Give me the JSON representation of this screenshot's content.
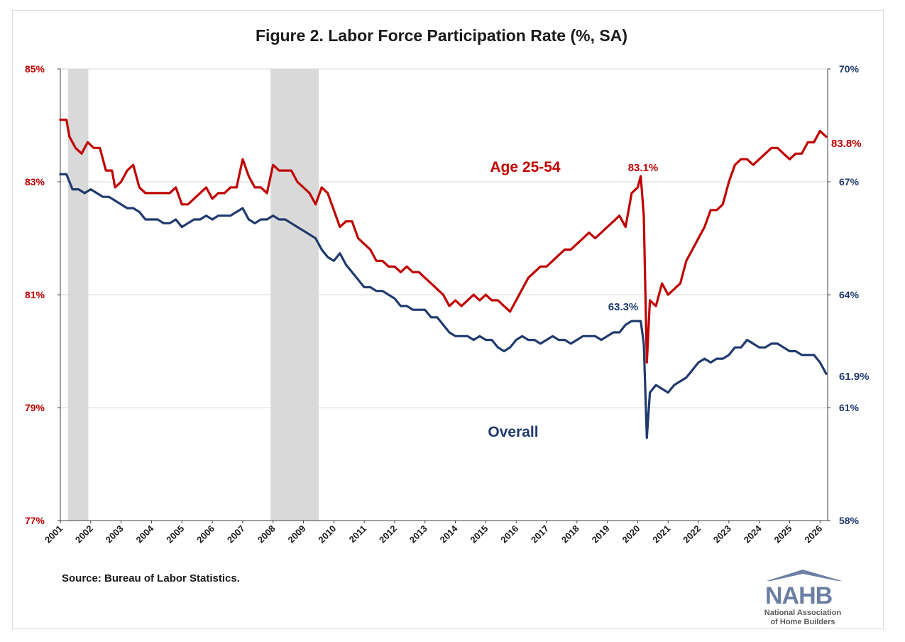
{
  "chart_data": {
    "type": "line",
    "title": "Figure 2. Labor Force Participation Rate (%, SA)",
    "source": "Source: Bureau of Labor Statistics.",
    "x_tick_labels": [
      "2001",
      "2002",
      "2003",
      "2004",
      "2005",
      "2006",
      "2007",
      "2008",
      "2009",
      "2010",
      "2011",
      "2012",
      "2013",
      "2014",
      "2015",
      "2016",
      "2017",
      "2018",
      "2019",
      "2020",
      "2021",
      "2022",
      "2023",
      "2024",
      "2025",
      "2026"
    ],
    "xlim": [
      2001.0,
      2026.25
    ],
    "left_axis": {
      "ylim": [
        77,
        85
      ],
      "ticks": [
        "77%",
        "79%",
        "81%",
        "83%",
        "85%"
      ],
      "tick_values": [
        77,
        79,
        81,
        83,
        85
      ],
      "color": "#c00000"
    },
    "right_axis": {
      "ylim": [
        58,
        70
      ],
      "ticks": [
        "58%",
        "61%",
        "64%",
        "67%",
        "70%"
      ],
      "tick_values": [
        58,
        61,
        64,
        67,
        70
      ],
      "color": "#1f3a6e"
    },
    "grid": true,
    "recessions": [
      [
        2001.25,
        2001.92
      ],
      [
        2007.92,
        2009.5
      ]
    ],
    "series": [
      {
        "name": "Age 25-54",
        "axis": "left",
        "color": "#c00000",
        "points": [
          [
            2001.0,
            84.1
          ],
          [
            2001.1,
            84.1
          ],
          [
            2001.2,
            84.1
          ],
          [
            2001.3,
            83.8
          ],
          [
            2001.4,
            83.7
          ],
          [
            2001.5,
            83.6
          ],
          [
            2001.7,
            83.5
          ],
          [
            2001.9,
            83.7
          ],
          [
            2002.1,
            83.6
          ],
          [
            2002.3,
            83.6
          ],
          [
            2002.5,
            83.2
          ],
          [
            2002.7,
            83.2
          ],
          [
            2002.8,
            82.9
          ],
          [
            2003.0,
            83.0
          ],
          [
            2003.2,
            83.2
          ],
          [
            2003.4,
            83.3
          ],
          [
            2003.6,
            82.9
          ],
          [
            2003.8,
            82.8
          ],
          [
            2004.0,
            82.8
          ],
          [
            2004.2,
            82.8
          ],
          [
            2004.4,
            82.8
          ],
          [
            2004.6,
            82.8
          ],
          [
            2004.8,
            82.9
          ],
          [
            2005.0,
            82.6
          ],
          [
            2005.2,
            82.6
          ],
          [
            2005.4,
            82.7
          ],
          [
            2005.6,
            82.8
          ],
          [
            2005.8,
            82.9
          ],
          [
            2006.0,
            82.7
          ],
          [
            2006.2,
            82.8
          ],
          [
            2006.4,
            82.8
          ],
          [
            2006.6,
            82.9
          ],
          [
            2006.8,
            82.9
          ],
          [
            2007.0,
            83.4
          ],
          [
            2007.2,
            83.1
          ],
          [
            2007.4,
            82.9
          ],
          [
            2007.6,
            82.9
          ],
          [
            2007.8,
            82.8
          ],
          [
            2008.0,
            83.3
          ],
          [
            2008.2,
            83.2
          ],
          [
            2008.4,
            83.2
          ],
          [
            2008.6,
            83.2
          ],
          [
            2008.8,
            83.0
          ],
          [
            2009.0,
            82.9
          ],
          [
            2009.2,
            82.8
          ],
          [
            2009.4,
            82.6
          ],
          [
            2009.6,
            82.9
          ],
          [
            2009.8,
            82.8
          ],
          [
            2010.0,
            82.5
          ],
          [
            2010.2,
            82.2
          ],
          [
            2010.4,
            82.3
          ],
          [
            2010.6,
            82.3
          ],
          [
            2010.8,
            82.0
          ],
          [
            2011.0,
            81.9
          ],
          [
            2011.2,
            81.8
          ],
          [
            2011.4,
            81.6
          ],
          [
            2011.6,
            81.6
          ],
          [
            2011.8,
            81.5
          ],
          [
            2012.0,
            81.5
          ],
          [
            2012.2,
            81.4
          ],
          [
            2012.4,
            81.5
          ],
          [
            2012.6,
            81.4
          ],
          [
            2012.8,
            81.4
          ],
          [
            2013.0,
            81.3
          ],
          [
            2013.2,
            81.2
          ],
          [
            2013.4,
            81.1
          ],
          [
            2013.6,
            81.0
          ],
          [
            2013.8,
            80.8
          ],
          [
            2014.0,
            80.9
          ],
          [
            2014.2,
            80.8
          ],
          [
            2014.4,
            80.9
          ],
          [
            2014.6,
            81.0
          ],
          [
            2014.8,
            80.9
          ],
          [
            2015.0,
            81.0
          ],
          [
            2015.2,
            80.9
          ],
          [
            2015.4,
            80.9
          ],
          [
            2015.6,
            80.8
          ],
          [
            2015.8,
            80.7
          ],
          [
            2016.0,
            80.9
          ],
          [
            2016.2,
            81.1
          ],
          [
            2016.4,
            81.3
          ],
          [
            2016.6,
            81.4
          ],
          [
            2016.8,
            81.5
          ],
          [
            2017.0,
            81.5
          ],
          [
            2017.2,
            81.6
          ],
          [
            2017.4,
            81.7
          ],
          [
            2017.6,
            81.8
          ],
          [
            2017.8,
            81.8
          ],
          [
            2018.0,
            81.9
          ],
          [
            2018.2,
            82.0
          ],
          [
            2018.4,
            82.1
          ],
          [
            2018.6,
            82.0
          ],
          [
            2018.8,
            82.1
          ],
          [
            2019.0,
            82.2
          ],
          [
            2019.2,
            82.3
          ],
          [
            2019.4,
            82.4
          ],
          [
            2019.6,
            82.2
          ],
          [
            2019.8,
            82.8
          ],
          [
            2020.0,
            82.9
          ],
          [
            2020.1,
            83.1
          ],
          [
            2020.2,
            82.4
          ],
          [
            2020.3,
            79.8
          ],
          [
            2020.4,
            80.9
          ],
          [
            2020.6,
            80.8
          ],
          [
            2020.8,
            81.2
          ],
          [
            2021.0,
            81.0
          ],
          [
            2021.2,
            81.1
          ],
          [
            2021.4,
            81.2
          ],
          [
            2021.6,
            81.6
          ],
          [
            2021.8,
            81.8
          ],
          [
            2022.0,
            82.0
          ],
          [
            2022.2,
            82.2
          ],
          [
            2022.4,
            82.5
          ],
          [
            2022.6,
            82.5
          ],
          [
            2022.8,
            82.6
          ],
          [
            2023.0,
            83.0
          ],
          [
            2023.2,
            83.3
          ],
          [
            2023.4,
            83.4
          ],
          [
            2023.6,
            83.4
          ],
          [
            2023.8,
            83.3
          ],
          [
            2024.0,
            83.4
          ],
          [
            2024.2,
            83.5
          ],
          [
            2024.4,
            83.6
          ],
          [
            2024.6,
            83.6
          ],
          [
            2024.8,
            83.5
          ],
          [
            2025.0,
            83.4
          ],
          [
            2025.2,
            83.5
          ],
          [
            2025.4,
            83.5
          ],
          [
            2025.6,
            83.7
          ],
          [
            2025.8,
            83.7
          ],
          [
            2026.0,
            83.9
          ],
          [
            2026.2,
            83.8
          ]
        ],
        "label": "Age 25-54",
        "last_value_label": "83.8%",
        "peak_label": "83.1%"
      },
      {
        "name": "Overall",
        "axis": "right",
        "color": "#1f3a6e",
        "points": [
          [
            2001.0,
            67.2
          ],
          [
            2001.2,
            67.2
          ],
          [
            2001.4,
            66.8
          ],
          [
            2001.6,
            66.8
          ],
          [
            2001.8,
            66.7
          ],
          [
            2002.0,
            66.8
          ],
          [
            2002.2,
            66.7
          ],
          [
            2002.4,
            66.6
          ],
          [
            2002.6,
            66.6
          ],
          [
            2002.8,
            66.5
          ],
          [
            2003.0,
            66.4
          ],
          [
            2003.2,
            66.3
          ],
          [
            2003.4,
            66.3
          ],
          [
            2003.6,
            66.2
          ],
          [
            2003.8,
            66.0
          ],
          [
            2004.0,
            66.0
          ],
          [
            2004.2,
            66.0
          ],
          [
            2004.4,
            65.9
          ],
          [
            2004.6,
            65.9
          ],
          [
            2004.8,
            66.0
          ],
          [
            2005.0,
            65.8
          ],
          [
            2005.2,
            65.9
          ],
          [
            2005.4,
            66.0
          ],
          [
            2005.6,
            66.0
          ],
          [
            2005.8,
            66.1
          ],
          [
            2006.0,
            66.0
          ],
          [
            2006.2,
            66.1
          ],
          [
            2006.4,
            66.1
          ],
          [
            2006.6,
            66.1
          ],
          [
            2006.8,
            66.2
          ],
          [
            2007.0,
            66.3
          ],
          [
            2007.2,
            66.0
          ],
          [
            2007.4,
            65.9
          ],
          [
            2007.6,
            66.0
          ],
          [
            2007.8,
            66.0
          ],
          [
            2008.0,
            66.1
          ],
          [
            2008.2,
            66.0
          ],
          [
            2008.4,
            66.0
          ],
          [
            2008.6,
            65.9
          ],
          [
            2008.8,
            65.8
          ],
          [
            2009.0,
            65.7
          ],
          [
            2009.2,
            65.6
          ],
          [
            2009.4,
            65.5
          ],
          [
            2009.6,
            65.2
          ],
          [
            2009.8,
            65.0
          ],
          [
            2010.0,
            64.9
          ],
          [
            2010.2,
            65.1
          ],
          [
            2010.4,
            64.8
          ],
          [
            2010.6,
            64.6
          ],
          [
            2010.8,
            64.4
          ],
          [
            2011.0,
            64.2
          ],
          [
            2011.2,
            64.2
          ],
          [
            2011.4,
            64.1
          ],
          [
            2011.6,
            64.1
          ],
          [
            2011.8,
            64.0
          ],
          [
            2012.0,
            63.9
          ],
          [
            2012.2,
            63.7
          ],
          [
            2012.4,
            63.7
          ],
          [
            2012.6,
            63.6
          ],
          [
            2012.8,
            63.6
          ],
          [
            2013.0,
            63.6
          ],
          [
            2013.2,
            63.4
          ],
          [
            2013.4,
            63.4
          ],
          [
            2013.6,
            63.2
          ],
          [
            2013.8,
            63.0
          ],
          [
            2014.0,
            62.9
          ],
          [
            2014.2,
            62.9
          ],
          [
            2014.4,
            62.9
          ],
          [
            2014.6,
            62.8
          ],
          [
            2014.8,
            62.9
          ],
          [
            2015.0,
            62.8
          ],
          [
            2015.2,
            62.8
          ],
          [
            2015.4,
            62.6
          ],
          [
            2015.6,
            62.5
          ],
          [
            2015.8,
            62.6
          ],
          [
            2016.0,
            62.8
          ],
          [
            2016.2,
            62.9
          ],
          [
            2016.4,
            62.8
          ],
          [
            2016.6,
            62.8
          ],
          [
            2016.8,
            62.7
          ],
          [
            2017.0,
            62.8
          ],
          [
            2017.2,
            62.9
          ],
          [
            2017.4,
            62.8
          ],
          [
            2017.6,
            62.8
          ],
          [
            2017.8,
            62.7
          ],
          [
            2018.0,
            62.8
          ],
          [
            2018.2,
            62.9
          ],
          [
            2018.4,
            62.9
          ],
          [
            2018.6,
            62.9
          ],
          [
            2018.8,
            62.8
          ],
          [
            2019.0,
            62.9
          ],
          [
            2019.2,
            63.0
          ],
          [
            2019.4,
            63.0
          ],
          [
            2019.6,
            63.2
          ],
          [
            2019.8,
            63.3
          ],
          [
            2020.0,
            63.3
          ],
          [
            2020.1,
            63.3
          ],
          [
            2020.2,
            62.7
          ],
          [
            2020.3,
            60.2
          ],
          [
            2020.4,
            61.4
          ],
          [
            2020.6,
            61.6
          ],
          [
            2020.8,
            61.5
          ],
          [
            2021.0,
            61.4
          ],
          [
            2021.2,
            61.6
          ],
          [
            2021.4,
            61.7
          ],
          [
            2021.6,
            61.8
          ],
          [
            2021.8,
            62.0
          ],
          [
            2022.0,
            62.2
          ],
          [
            2022.2,
            62.3
          ],
          [
            2022.4,
            62.2
          ],
          [
            2022.6,
            62.3
          ],
          [
            2022.8,
            62.3
          ],
          [
            2023.0,
            62.4
          ],
          [
            2023.2,
            62.6
          ],
          [
            2023.4,
            62.6
          ],
          [
            2023.6,
            62.8
          ],
          [
            2023.8,
            62.7
          ],
          [
            2024.0,
            62.6
          ],
          [
            2024.2,
            62.6
          ],
          [
            2024.4,
            62.7
          ],
          [
            2024.6,
            62.7
          ],
          [
            2024.8,
            62.6
          ],
          [
            2025.0,
            62.5
          ],
          [
            2025.2,
            62.5
          ],
          [
            2025.4,
            62.4
          ],
          [
            2025.6,
            62.4
          ],
          [
            2025.8,
            62.4
          ],
          [
            2026.0,
            62.2
          ],
          [
            2026.2,
            61.9
          ]
        ],
        "label": "Overall",
        "last_value_label": "61.9%",
        "peak_label": "63.3%"
      }
    ]
  },
  "logo": {
    "wordmark": "NAHB",
    "line1": "National Association",
    "line2": "of Home Builders"
  }
}
